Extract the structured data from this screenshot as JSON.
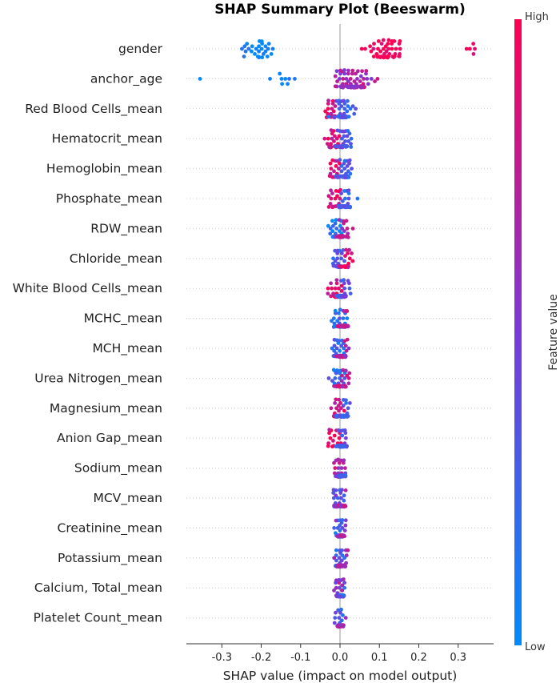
{
  "chart_data": {
    "type": "scatter",
    "subtype": "beeswarm",
    "title": "SHAP Summary Plot (Beeswarm)",
    "xlabel": "SHAP value (impact on model output)",
    "xlim": [
      -0.39,
      0.39
    ],
    "xticks": [
      "-0.3",
      "-0.2",
      "-0.1",
      "0.0",
      "0.1",
      "0.2",
      "0.3"
    ],
    "xtick_values": [
      -0.3,
      -0.2,
      -0.1,
      0.0,
      0.1,
      0.2,
      0.3
    ],
    "grid": "dotted horizontal lines per feature",
    "colorbar": {
      "label": "Feature value",
      "high_label": "High",
      "low_label": "Low",
      "high_color": "#ff0052",
      "low_color": "#008bfb"
    },
    "features": [
      {
        "name": "gender",
        "clusters": [
          {
            "x": -0.205,
            "spread": 0.055,
            "count": 28,
            "value": 0.0
          },
          {
            "x": 0.115,
            "spread": 0.055,
            "count": 52,
            "value": 1.0
          },
          {
            "x": 0.33,
            "spread": 0.025,
            "count": 5,
            "value": 0.95
          }
        ]
      },
      {
        "name": "anchor_age",
        "clusters": [
          {
            "x": -0.13,
            "spread": 0.06,
            "count": 8,
            "value": 0.05
          },
          {
            "x": -0.355,
            "spread": 0.005,
            "count": 1,
            "value": 0.0
          },
          {
            "x": 0.03,
            "spread": 0.055,
            "count": 75,
            "value": 0.65
          }
        ]
      },
      {
        "name": "Red Blood Cells_mean",
        "clusters": [
          {
            "x": -0.02,
            "spread": 0.025,
            "count": 18,
            "value": 0.85
          },
          {
            "x": 0.01,
            "spread": 0.025,
            "count": 45,
            "value": 0.3
          }
        ]
      },
      {
        "name": "Hematocrit_mean",
        "clusters": [
          {
            "x": -0.02,
            "spread": 0.028,
            "count": 20,
            "value": 0.85
          },
          {
            "x": 0.008,
            "spread": 0.022,
            "count": 45,
            "value": 0.3
          }
        ]
      },
      {
        "name": "Hemoglobin_mean",
        "clusters": [
          {
            "x": -0.015,
            "spread": 0.02,
            "count": 18,
            "value": 0.85
          },
          {
            "x": 0.008,
            "spread": 0.018,
            "count": 45,
            "value": 0.3
          }
        ]
      },
      {
        "name": "Phosphate_mean",
        "clusters": [
          {
            "x": -0.012,
            "spread": 0.02,
            "count": 20,
            "value": 0.85
          },
          {
            "x": 0.012,
            "spread": 0.022,
            "count": 45,
            "value": 0.25
          }
        ]
      },
      {
        "name": "RDW_mean",
        "clusters": [
          {
            "x": -0.01,
            "spread": 0.02,
            "count": 30,
            "value": 0.1
          },
          {
            "x": 0.005,
            "spread": 0.02,
            "count": 35,
            "value": 0.7
          }
        ]
      },
      {
        "name": "Chloride_mean",
        "clusters": [
          {
            "x": -0.005,
            "spread": 0.015,
            "count": 35,
            "value": 0.3
          },
          {
            "x": 0.015,
            "spread": 0.02,
            "count": 25,
            "value": 0.9
          }
        ]
      },
      {
        "name": "White Blood Cells_mean",
        "clusters": [
          {
            "x": -0.01,
            "spread": 0.022,
            "count": 25,
            "value": 0.85
          },
          {
            "x": 0.005,
            "spread": 0.018,
            "count": 40,
            "value": 0.35
          }
        ]
      },
      {
        "name": "MCHC_mean",
        "clusters": [
          {
            "x": -0.005,
            "spread": 0.02,
            "count": 30,
            "value": 0.2
          },
          {
            "x": 0.008,
            "spread": 0.015,
            "count": 35,
            "value": 0.75
          }
        ]
      },
      {
        "name": "MCH_mean",
        "clusters": [
          {
            "x": -0.005,
            "spread": 0.02,
            "count": 30,
            "value": 0.2
          },
          {
            "x": 0.008,
            "spread": 0.018,
            "count": 35,
            "value": 0.7
          }
        ]
      },
      {
        "name": "Urea Nitrogen_mean",
        "clusters": [
          {
            "x": -0.005,
            "spread": 0.018,
            "count": 35,
            "value": 0.2
          },
          {
            "x": 0.008,
            "spread": 0.015,
            "count": 30,
            "value": 0.75
          }
        ]
      },
      {
        "name": "Magnesium_mean",
        "clusters": [
          {
            "x": -0.008,
            "spread": 0.018,
            "count": 25,
            "value": 0.85
          },
          {
            "x": 0.006,
            "spread": 0.018,
            "count": 40,
            "value": 0.3
          }
        ]
      },
      {
        "name": "Anion Gap_mean",
        "clusters": [
          {
            "x": -0.015,
            "spread": 0.022,
            "count": 15,
            "value": 0.9
          },
          {
            "x": 0.004,
            "spread": 0.014,
            "count": 50,
            "value": 0.35
          }
        ]
      },
      {
        "name": "Sodium_mean",
        "clusters": [
          {
            "x": -0.003,
            "spread": 0.015,
            "count": 35,
            "value": 0.7
          },
          {
            "x": 0.004,
            "spread": 0.014,
            "count": 30,
            "value": 0.3
          }
        ]
      },
      {
        "name": "MCV_mean",
        "clusters": [
          {
            "x": -0.003,
            "spread": 0.014,
            "count": 35,
            "value": 0.3
          },
          {
            "x": 0.004,
            "spread": 0.014,
            "count": 30,
            "value": 0.7
          }
        ]
      },
      {
        "name": "Creatinine_mean",
        "clusters": [
          {
            "x": -0.002,
            "spread": 0.012,
            "count": 35,
            "value": 0.2
          },
          {
            "x": 0.004,
            "spread": 0.014,
            "count": 30,
            "value": 0.65
          }
        ]
      },
      {
        "name": "Potassium_mean",
        "clusters": [
          {
            "x": -0.002,
            "spread": 0.012,
            "count": 35,
            "value": 0.3
          },
          {
            "x": 0.006,
            "spread": 0.014,
            "count": 30,
            "value": 0.7
          }
        ]
      },
      {
        "name": "Calcium, Total_mean",
        "clusters": [
          {
            "x": -0.002,
            "spread": 0.01,
            "count": 35,
            "value": 0.6
          },
          {
            "x": 0.003,
            "spread": 0.01,
            "count": 30,
            "value": 0.3
          }
        ]
      },
      {
        "name": "Platelet Count_mean",
        "clusters": [
          {
            "x": -0.002,
            "spread": 0.01,
            "count": 35,
            "value": 0.3
          },
          {
            "x": 0.003,
            "spread": 0.01,
            "count": 30,
            "value": 0.7
          }
        ]
      }
    ]
  }
}
